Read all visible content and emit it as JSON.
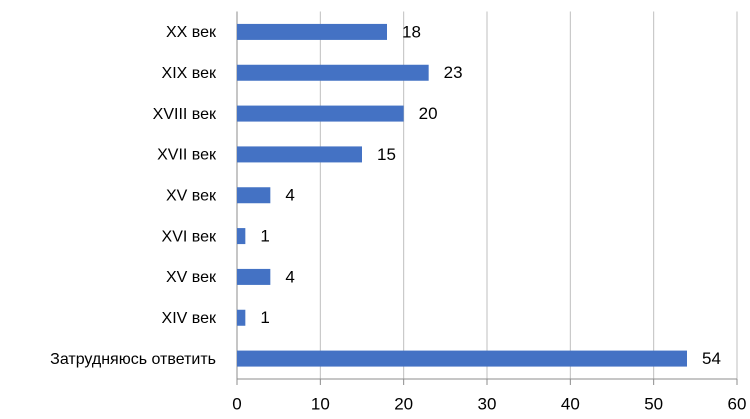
{
  "chart_data": {
    "type": "bar",
    "orientation": "horizontal",
    "categories": [
      "XX век",
      "XIX век",
      "XVIII век",
      "XVII век",
      "XV век",
      "XVI век",
      "XV век",
      "XIV век",
      "Затрудняюсь ответить"
    ],
    "values": [
      18,
      23,
      20,
      15,
      4,
      1,
      4,
      1,
      54
    ],
    "color": "#4472c4",
    "xlim": [
      0,
      60
    ],
    "xticks": [
      0,
      10,
      20,
      30,
      40,
      50,
      60
    ],
    "grid": true
  }
}
